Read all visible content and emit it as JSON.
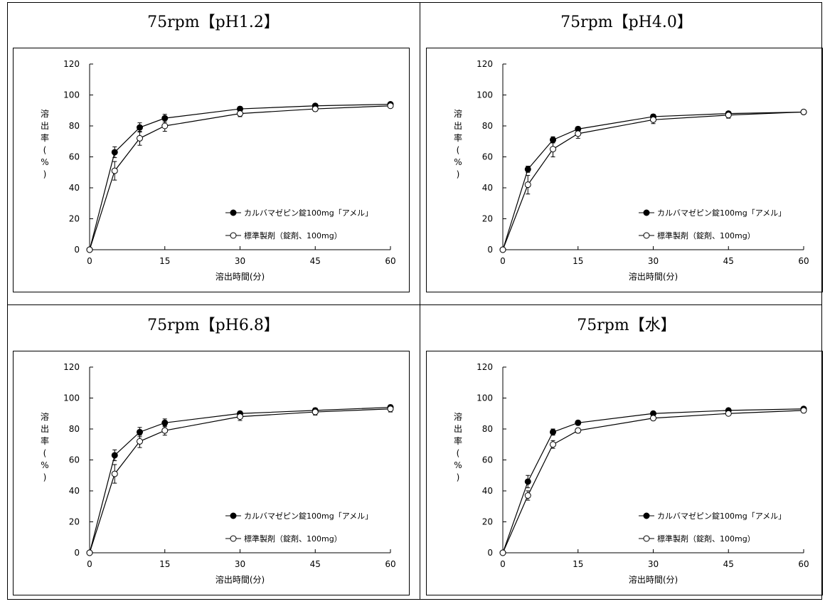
{
  "panels": [
    {
      "title": "75rpm【pH1.2】",
      "chart_data": {
        "type": "line",
        "title": "75rpm【pH1.2】",
        "xlabel": "溶出時間(分)",
        "ylabel": "溶出率(%)",
        "xlim": [
          0,
          60
        ],
        "ylim": [
          0,
          120
        ],
        "xticks": [
          0,
          15,
          30,
          45,
          60
        ],
        "yticks": [
          0,
          20,
          40,
          60,
          80,
          100,
          120
        ],
        "x": [
          0,
          5,
          10,
          15,
          30,
          45,
          60
        ],
        "legend_position": "lower-right",
        "series": [
          {
            "name": "カルバマゼピン錠100mg「アメル」",
            "marker": "filled-circle",
            "values": [
              0,
              63,
              79,
              85,
              91,
              93,
              94
            ],
            "errors": [
              0,
              3.5,
              3,
              2.5,
              1.5,
              1,
              1
            ]
          },
          {
            "name": "標準製剤（錠剤、100mg）",
            "marker": "open-circle",
            "values": [
              0,
              51,
              72,
              80,
              88,
              91,
              93
            ],
            "errors": [
              0,
              6,
              4.5,
              3.5,
              2,
              1.5,
              1
            ]
          }
        ]
      }
    },
    {
      "title": "75rpm【pH4.0】",
      "chart_data": {
        "type": "line",
        "title": "75rpm【pH4.0】",
        "xlabel": "溶出時間(分)",
        "ylabel": "溶出率(%)",
        "xlim": [
          0,
          60
        ],
        "ylim": [
          0,
          120
        ],
        "xticks": [
          0,
          15,
          30,
          45,
          60
        ],
        "yticks": [
          0,
          20,
          40,
          60,
          80,
          100,
          120
        ],
        "x": [
          0,
          5,
          10,
          15,
          30,
          45,
          60
        ],
        "legend_position": "lower-right",
        "series": [
          {
            "name": "カルバマゼピン錠100mg「アメル」",
            "marker": "filled-circle",
            "values": [
              0,
              52,
              71,
              78,
              86,
              88,
              89
            ],
            "errors": [
              0,
              2,
              2,
              1.5,
              1.5,
              1,
              1
            ]
          },
          {
            "name": "標準製剤（錠剤、100mg）",
            "marker": "open-circle",
            "values": [
              0,
              42,
              65,
              75,
              84,
              87,
              89
            ],
            "errors": [
              0,
              6,
              5,
              3,
              2.5,
              2,
              1
            ]
          }
        ]
      }
    },
    {
      "title": "75rpm【pH6.8】",
      "chart_data": {
        "type": "line",
        "title": "75rpm【pH6.8】",
        "xlabel": "溶出時間(分)",
        "ylabel": "溶出率(%)",
        "xlim": [
          0,
          60
        ],
        "ylim": [
          0,
          120
        ],
        "xticks": [
          0,
          15,
          30,
          45,
          60
        ],
        "yticks": [
          0,
          20,
          40,
          60,
          80,
          100,
          120
        ],
        "x": [
          0,
          5,
          10,
          15,
          30,
          45,
          60
        ],
        "legend_position": "lower-right",
        "series": [
          {
            "name": "カルバマゼピン錠100mg「アメル」",
            "marker": "filled-circle",
            "values": [
              0,
              63,
              78,
              84,
              90,
              92,
              94
            ],
            "errors": [
              0,
              3.5,
              3,
              2.5,
              1.5,
              1.5,
              1.5
            ]
          },
          {
            "name": "標準製剤（錠剤、100mg）",
            "marker": "open-circle",
            "values": [
              0,
              51,
              72,
              79,
              88,
              91,
              93
            ],
            "errors": [
              0,
              6,
              4,
              3,
              2.5,
              2,
              2
            ]
          }
        ]
      }
    },
    {
      "title": "75rpm【水】",
      "chart_data": {
        "type": "line",
        "title": "75rpm【水】",
        "xlabel": "溶出時間(分)",
        "ylabel": "溶出率(%)",
        "xlim": [
          0,
          60
        ],
        "ylim": [
          0,
          120
        ],
        "xticks": [
          0,
          15,
          30,
          45,
          60
        ],
        "yticks": [
          0,
          20,
          40,
          60,
          80,
          100,
          120
        ],
        "x": [
          0,
          5,
          10,
          15,
          30,
          45,
          60
        ],
        "legend_position": "lower-right",
        "series": [
          {
            "name": "カルバマゼピン錠100mg「アメル」",
            "marker": "filled-circle",
            "values": [
              0,
              46,
              78,
              84,
              90,
              92,
              93
            ],
            "errors": [
              0,
              4,
              2,
              1.5,
              1,
              1,
              1
            ]
          },
          {
            "name": "標準製剤（錠剤、100mg）",
            "marker": "open-circle",
            "values": [
              0,
              37,
              70,
              79,
              87,
              90,
              92
            ],
            "errors": [
              0,
              3,
              2.5,
              1.5,
              1,
              1,
              1
            ]
          }
        ]
      }
    }
  ]
}
